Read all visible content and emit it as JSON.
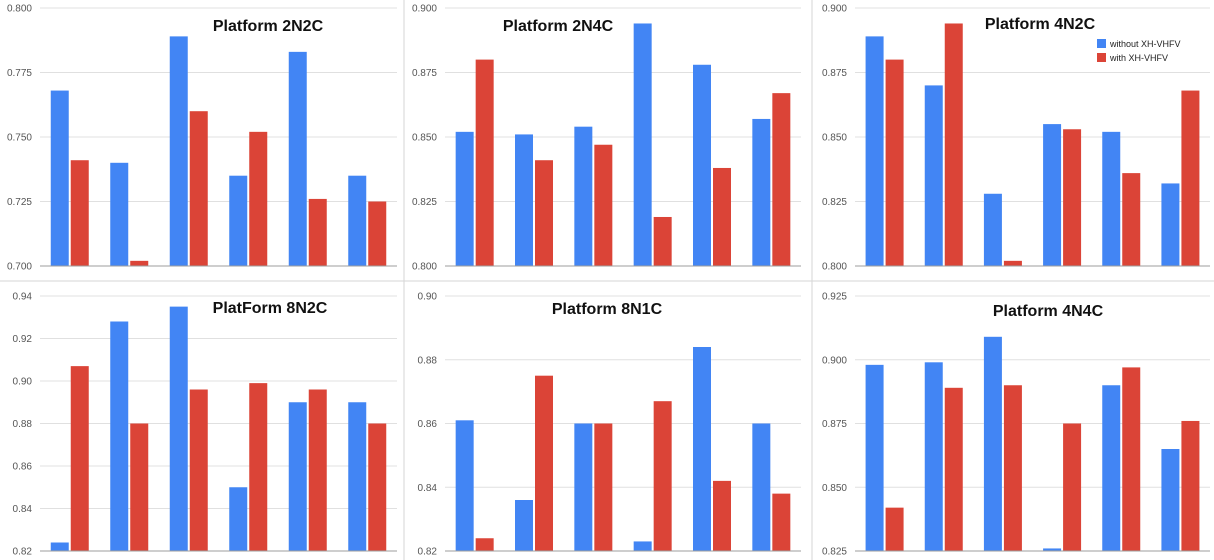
{
  "colors": {
    "without": "#4285f4",
    "with": "#db4437"
  },
  "legend": {
    "without_label": "without XH-VHFV",
    "with_label": "with XH-VHFV",
    "placement": "top-right of Platform 4N2C panel"
  },
  "chart_data": [
    {
      "type": "bar",
      "title": "Platform 2N2C",
      "categories": [
        "",
        "",
        "",
        "",
        "",
        ""
      ],
      "ylim": [
        0.7,
        0.8
      ],
      "yticks": [
        "0.700",
        "0.725",
        "0.750",
        "0.775",
        "0.800"
      ],
      "grid": true,
      "series": [
        {
          "name": "without XH-VHFV",
          "values": [
            0.768,
            0.74,
            0.789,
            0.735,
            0.783,
            0.735
          ]
        },
        {
          "name": "with XH-VHFV",
          "values": [
            0.741,
            0.702,
            0.76,
            0.752,
            0.726,
            0.725
          ]
        }
      ]
    },
    {
      "type": "bar",
      "title": "Platform 2N4C",
      "categories": [
        "",
        "",
        "",
        "",
        "",
        ""
      ],
      "ylim": [
        0.8,
        0.9
      ],
      "yticks": [
        "0.800",
        "0.825",
        "0.850",
        "0.875",
        "0.900"
      ],
      "grid": true,
      "series": [
        {
          "name": "without XH-VHFV",
          "values": [
            0.852,
            0.851,
            0.854,
            0.894,
            0.878,
            0.857
          ]
        },
        {
          "name": "with XH-VHFV",
          "values": [
            0.88,
            0.841,
            0.847,
            0.819,
            0.838,
            0.867
          ]
        }
      ]
    },
    {
      "type": "bar",
      "title": "Platform 4N2C",
      "categories": [
        "",
        "",
        "",
        "",
        "",
        ""
      ],
      "ylim": [
        0.8,
        0.9
      ],
      "yticks": [
        "0.800",
        "0.825",
        "0.850",
        "0.875",
        "0.900"
      ],
      "grid": true,
      "series": [
        {
          "name": "without XH-VHFV",
          "values": [
            0.889,
            0.87,
            0.828,
            0.855,
            0.852,
            0.832
          ]
        },
        {
          "name": "with XH-VHFV",
          "values": [
            0.88,
            0.894,
            0.802,
            0.853,
            0.836,
            0.868
          ]
        }
      ]
    },
    {
      "type": "bar",
      "title": "PlatForm 8N2C",
      "categories": [
        "",
        "",
        "",
        "",
        "",
        ""
      ],
      "ylim": [
        0.82,
        0.94
      ],
      "yticks": [
        "0.82",
        "0.84",
        "0.86",
        "0.88",
        "0.90",
        "0.92",
        "0.94"
      ],
      "grid": true,
      "series": [
        {
          "name": "without XH-VHFV",
          "values": [
            0.824,
            0.928,
            0.935,
            0.85,
            0.89,
            0.89
          ]
        },
        {
          "name": "with XH-VHFV",
          "values": [
            0.907,
            0.88,
            0.896,
            0.899,
            0.896,
            0.88
          ]
        }
      ]
    },
    {
      "type": "bar",
      "title": "Platform 8N1C",
      "categories": [
        "",
        "",
        "",
        "",
        "",
        ""
      ],
      "ylim": [
        0.82,
        0.9
      ],
      "yticks": [
        "0.82",
        "0.84",
        "0.86",
        "0.88",
        "0.90"
      ],
      "grid": true,
      "series": [
        {
          "name": "without XH-VHFV",
          "values": [
            0.861,
            0.836,
            0.86,
            0.823,
            0.884,
            0.86
          ]
        },
        {
          "name": "with XH-VHFV",
          "values": [
            0.824,
            0.875,
            0.86,
            0.867,
            0.842,
            0.838
          ]
        }
      ]
    },
    {
      "type": "bar",
      "title": "Platform 4N4C",
      "categories": [
        "",
        "",
        "",
        "",
        "",
        ""
      ],
      "ylim": [
        0.825,
        0.925
      ],
      "yticks": [
        "0.825",
        "0.850",
        "0.875",
        "0.900",
        "0.925"
      ],
      "grid": true,
      "series": [
        {
          "name": "without XH-VHFV",
          "values": [
            0.898,
            0.899,
            0.909,
            0.826,
            0.89,
            0.865
          ]
        },
        {
          "name": "with XH-VHFV",
          "values": [
            0.842,
            0.889,
            0.89,
            0.875,
            0.897,
            0.876
          ]
        }
      ]
    }
  ]
}
